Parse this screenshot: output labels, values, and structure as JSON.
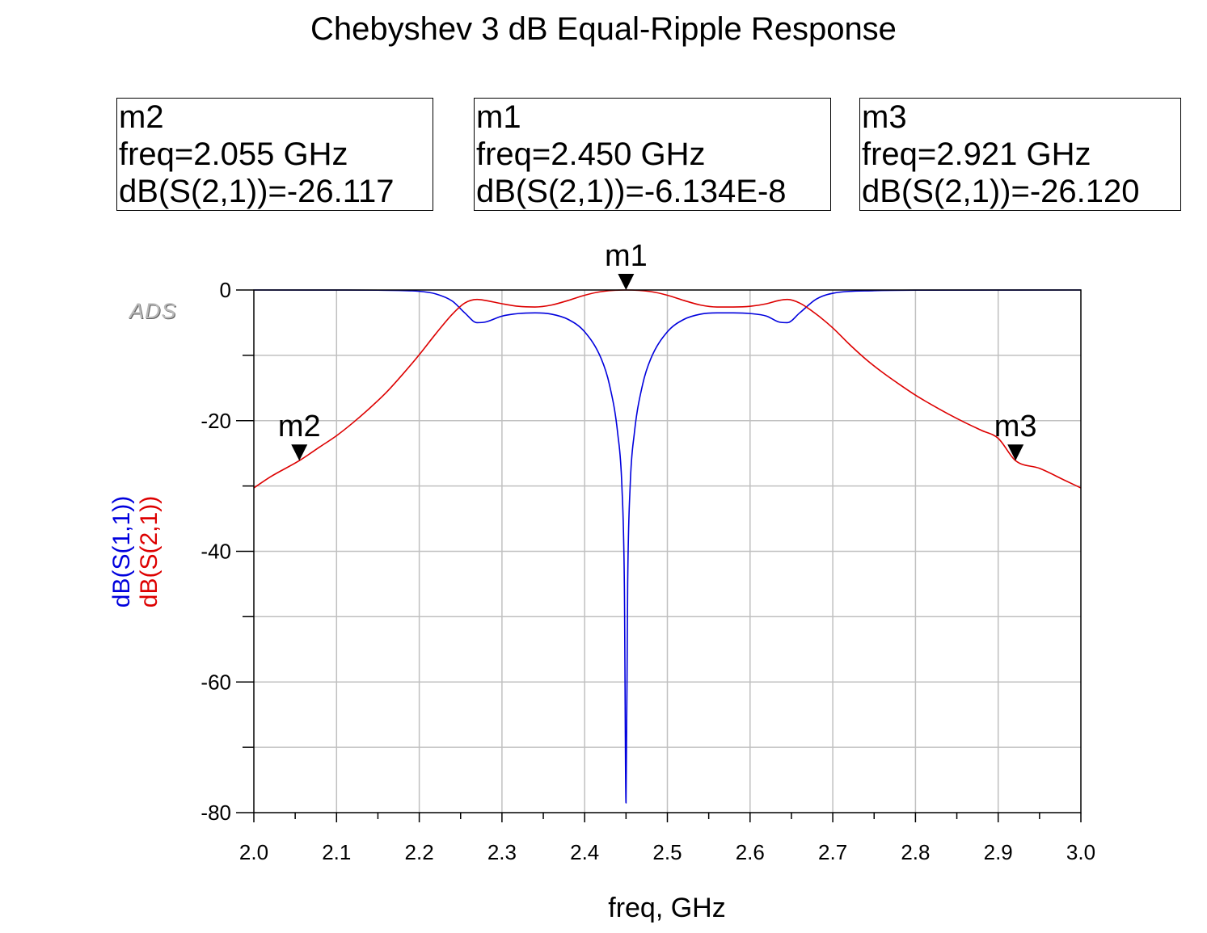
{
  "chart_data": {
    "type": "line",
    "title": "Chebyshev 3 dB Equal-Ripple Response",
    "xlabel": "freq, GHz",
    "ylabel_series": [
      "dB(S(1,1))",
      "dB(S(2,1))"
    ],
    "xlim": [
      2.0,
      3.0
    ],
    "ylim": [
      -80,
      0
    ],
    "x_ticks": [
      "2.0",
      "2.1",
      "2.2",
      "2.3",
      "2.4",
      "2.5",
      "2.6",
      "2.7",
      "2.8",
      "2.9",
      "3.0"
    ],
    "y_ticks": [
      "0",
      "-20",
      "-40",
      "-60",
      "-80"
    ],
    "grid": true,
    "watermark": "ADS",
    "series": [
      {
        "name": "dB(S(1,1))",
        "color": "#0000dd",
        "x": [
          2.0,
          2.1,
          2.15,
          2.2,
          2.22,
          2.24,
          2.255,
          2.27,
          2.28,
          2.3,
          2.32,
          2.34,
          2.36,
          2.38,
          2.4,
          2.42,
          2.43,
          2.44,
          2.445,
          2.448,
          2.45,
          2.452,
          2.455,
          2.46,
          2.47,
          2.48,
          2.5,
          2.52,
          2.54,
          2.56,
          2.58,
          2.6,
          2.62,
          2.635,
          2.645,
          2.66,
          2.68,
          2.7,
          2.75,
          2.8,
          3.0
        ],
        "y": [
          0.0,
          -0.01,
          -0.03,
          -0.2,
          -0.6,
          -1.7,
          -3.5,
          -5.0,
          -4.9,
          -4.0,
          -3.6,
          -3.5,
          -3.7,
          -4.5,
          -6.4,
          -10.5,
          -14.5,
          -22.0,
          -30.0,
          -45.0,
          -78.5,
          -45.0,
          -30.0,
          -22.0,
          -14.5,
          -10.5,
          -6.4,
          -4.5,
          -3.7,
          -3.5,
          -3.5,
          -3.6,
          -4.0,
          -4.9,
          -5.0,
          -3.5,
          -1.4,
          -0.5,
          -0.1,
          -0.02,
          0.0
        ]
      },
      {
        "name": "dB(S(2,1))",
        "color": "#dd0000",
        "x": [
          2.0,
          2.02,
          2.055,
          2.08,
          2.1,
          2.12,
          2.14,
          2.16,
          2.18,
          2.2,
          2.22,
          2.24,
          2.255,
          2.27,
          2.28,
          2.3,
          2.32,
          2.34,
          2.36,
          2.38,
          2.4,
          2.42,
          2.45,
          2.48,
          2.5,
          2.52,
          2.54,
          2.56,
          2.58,
          2.6,
          2.62,
          2.635,
          2.645,
          2.66,
          2.68,
          2.7,
          2.72,
          2.74,
          2.76,
          2.78,
          2.8,
          2.82,
          2.84,
          2.86,
          2.88,
          2.9,
          2.921,
          2.95,
          2.98,
          3.0
        ],
        "y": [
          -30.3,
          -28.6,
          -26.117,
          -24.0,
          -22.3,
          -20.3,
          -18.1,
          -15.7,
          -12.9,
          -9.9,
          -6.7,
          -3.7,
          -2.0,
          -1.45,
          -1.6,
          -2.1,
          -2.5,
          -2.6,
          -2.3,
          -1.6,
          -0.8,
          -0.25,
          0.0,
          -0.25,
          -0.8,
          -1.6,
          -2.3,
          -2.6,
          -2.6,
          -2.5,
          -2.1,
          -1.6,
          -1.45,
          -2.0,
          -3.7,
          -5.8,
          -8.3,
          -10.6,
          -12.6,
          -14.4,
          -16.1,
          -17.6,
          -19.0,
          -20.3,
          -21.5,
          -22.7,
          -26.12,
          -27.3,
          -29.1,
          -30.3
        ]
      }
    ],
    "markers": [
      {
        "id": "m2",
        "name": "m2",
        "freq": "freq=2.055 GHz",
        "value": "dB(S(2,1))=-26.117",
        "x": 2.055,
        "y": -26.117
      },
      {
        "id": "m1",
        "name": "m1",
        "freq": "freq=2.450 GHz",
        "value": "dB(S(2,1))=-6.134E-8",
        "x": 2.45,
        "y": 0.0
      },
      {
        "id": "m3",
        "name": "m3",
        "freq": "freq=2.921 GHz",
        "value": "dB(S(2,1))=-26.120",
        "x": 2.921,
        "y": -26.12
      }
    ]
  },
  "readouts": {
    "m2": {
      "name": "m2",
      "freq": "freq=2.055 GHz",
      "value": "dB(S(2,1))=-26.117"
    },
    "m1": {
      "name": "m1",
      "freq": "freq=2.450 GHz",
      "value": "dB(S(2,1))=-6.134E-8"
    },
    "m3": {
      "name": "m3",
      "freq": "freq=2.921 GHz",
      "value": "dB(S(2,1))=-26.120"
    }
  },
  "colors": {
    "s11": "#0000dd",
    "s21": "#dd0000",
    "grid": "#c0c0c0"
  }
}
